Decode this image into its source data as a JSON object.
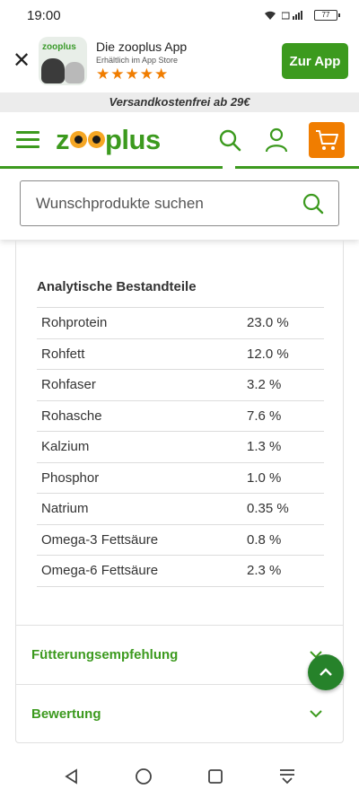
{
  "status_bar": {
    "time": "19:00",
    "battery": "77"
  },
  "app_banner": {
    "close_glyph": "✕",
    "logo_text": "zooplus",
    "title": "Die zooplus App",
    "subtitle": "Erhältlich im App Store",
    "stars": "★★★★★",
    "cta_label": "Zur App"
  },
  "promo": {
    "text": "Versandkostenfrei ab 29€"
  },
  "header": {
    "logo_parts": [
      "z",
      "plus"
    ],
    "icons": [
      "menu-icon",
      "search-icon",
      "user-icon",
      "cart-icon"
    ]
  },
  "search": {
    "placeholder": "Wunschprodukte suchen"
  },
  "analysis": {
    "title": "Analytische Bestandteile",
    "rows": [
      {
        "name": "Rohprotein",
        "value": "23.0 %"
      },
      {
        "name": "Rohfett",
        "value": "12.0 %"
      },
      {
        "name": "Rohfaser",
        "value": "3.2 %"
      },
      {
        "name": "Rohasche",
        "value": "7.6 %"
      },
      {
        "name": "Kalzium",
        "value": "1.3 %"
      },
      {
        "name": "Phosphor",
        "value": "1.0 %"
      },
      {
        "name": "Natrium",
        "value": "0.35 %"
      },
      {
        "name": "Omega-3 Fettsäure",
        "value": "0.8 %"
      },
      {
        "name": "Omega-6 Fettsäure",
        "value": "2.3 %"
      }
    ]
  },
  "accordions": [
    {
      "label": "Fütterungsempfehlung"
    },
    {
      "label": "Bewertung"
    }
  ],
  "colors": {
    "brand_green": "#3c9a1e",
    "accent_orange": "#f07d00",
    "scroll_button": "#26822a"
  }
}
